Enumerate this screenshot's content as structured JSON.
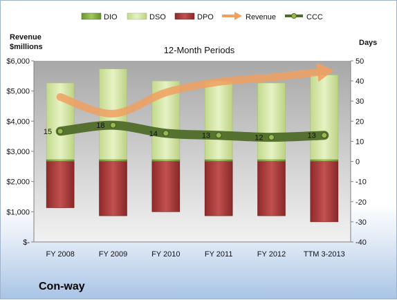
{
  "company": "Con-way",
  "chart_data": {
    "type": "bar",
    "title": "12-Month Periods",
    "categories": [
      "FY 2008",
      "FY 2009",
      "FY 2010",
      "FY 2011",
      "FY 2012",
      "TTM 3-2013"
    ],
    "left_axis": {
      "label_line1": "Revenue",
      "label_line2": "$millions",
      "min": 0,
      "max": 6000,
      "step": 1000,
      "tick_labels": [
        "$-",
        "$1,000",
        "$2,000",
        "$3,000",
        "$4,000",
        "$5,000",
        "$6,000"
      ]
    },
    "right_axis": {
      "label": "Days",
      "min": -40,
      "max": 50,
      "step": 10,
      "tick_labels": [
        "-40",
        "-30",
        "-20",
        "-10",
        "0",
        "10",
        "20",
        "30",
        "40",
        "50"
      ]
    },
    "legend": {
      "position": "top",
      "items": [
        "DIO",
        "DSO",
        "DPO",
        "Revenue",
        "CCC"
      ]
    },
    "series": [
      {
        "name": "DIO",
        "axis": "right",
        "color": "#7fa83c",
        "values": [
          1,
          1,
          1,
          1,
          1,
          1
        ]
      },
      {
        "name": "DSO",
        "axis": "right",
        "color": "#d7e8a8",
        "values": [
          38,
          45,
          39,
          39,
          38,
          42
        ]
      },
      {
        "name": "DPO",
        "axis": "right",
        "color": "#a33a3a",
        "values": [
          -23,
          -27,
          -25,
          -27,
          -27,
          -30
        ]
      },
      {
        "name": "Revenue",
        "axis": "left",
        "color": "#f0a060",
        "values": [
          4800,
          4250,
          4950,
          5300,
          5450,
          5650
        ]
      },
      {
        "name": "CCC",
        "axis": "right",
        "color": "#4f6b28",
        "values": [
          15,
          18,
          14,
          13,
          12,
          13
        ]
      }
    ],
    "ccc_labels": [
      "15",
      "18",
      "14",
      "13",
      "12",
      "13"
    ],
    "grid": false
  }
}
